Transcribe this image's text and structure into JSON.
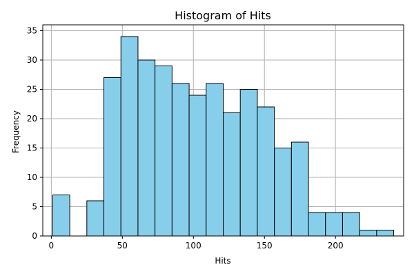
{
  "chart_data": {
    "type": "bar",
    "title": "Histogram of Hits",
    "xlabel": "Hits",
    "ylabel": "Frequency",
    "xlim": [
      -6,
      248
    ],
    "ylim": [
      0,
      36
    ],
    "x_ticks": [
      0,
      50,
      100,
      150,
      200
    ],
    "y_ticks": [
      0,
      5,
      10,
      15,
      20,
      25,
      30,
      35
    ],
    "grid": true,
    "bar_color": "#87ceeb",
    "edge_color": "#000000",
    "bins": [
      {
        "start": 1,
        "end": 13,
        "count": 7
      },
      {
        "start": 13,
        "end": 25,
        "count": 0
      },
      {
        "start": 25,
        "end": 37,
        "count": 6
      },
      {
        "start": 37,
        "end": 49,
        "count": 27
      },
      {
        "start": 49,
        "end": 61,
        "count": 34
      },
      {
        "start": 61,
        "end": 73,
        "count": 30
      },
      {
        "start": 73,
        "end": 85,
        "count": 29
      },
      {
        "start": 85,
        "end": 97,
        "count": 26
      },
      {
        "start": 97,
        "end": 109,
        "count": 24
      },
      {
        "start": 109,
        "end": 121,
        "count": 26
      },
      {
        "start": 121,
        "end": 133,
        "count": 21
      },
      {
        "start": 133,
        "end": 145,
        "count": 25
      },
      {
        "start": 145,
        "end": 157,
        "count": 22
      },
      {
        "start": 157,
        "end": 169,
        "count": 15
      },
      {
        "start": 169,
        "end": 181,
        "count": 16
      },
      {
        "start": 181,
        "end": 193,
        "count": 4
      },
      {
        "start": 193,
        "end": 205,
        "count": 4
      },
      {
        "start": 205,
        "end": 217,
        "count": 4
      },
      {
        "start": 217,
        "end": 229,
        "count": 1
      },
      {
        "start": 229,
        "end": 241,
        "count": 1
      }
    ]
  }
}
